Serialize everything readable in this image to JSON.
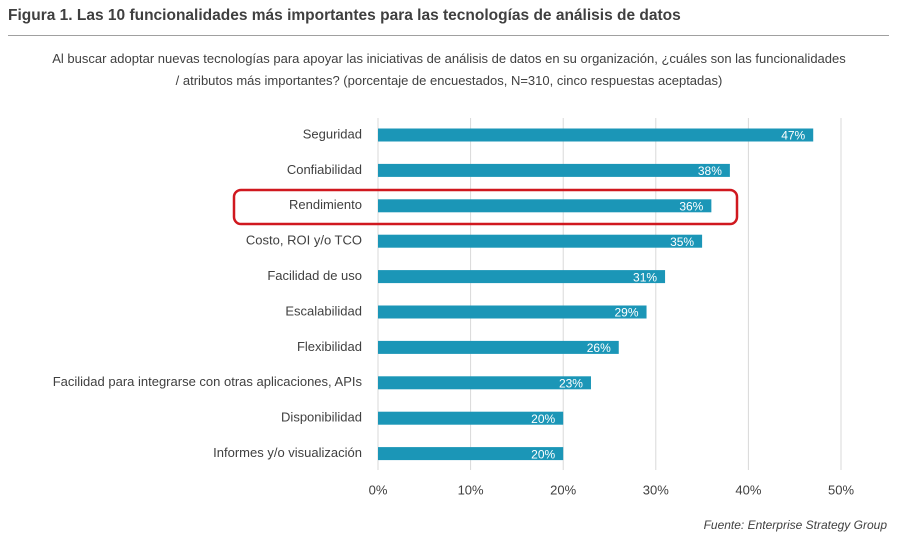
{
  "chart_data": {
    "type": "barh",
    "title": "Figura 1. Las 10 funcionalidades más importantes para las tecnologías de análisis de datos",
    "subtitle": "Al buscar adoptar nuevas tecnologías para apoyar las iniciativas de análisis de datos en su organización, ¿cuáles son las funcionalidades / atributos más importantes? (porcentaje de encuestados, N=310, cinco respuestas aceptadas)",
    "source": "Fuente: Enterprise Strategy Group",
    "categories": [
      "Seguridad",
      "Confiabilidad",
      "Rendimiento",
      "Costo, ROI y/o TCO",
      "Facilidad de uso",
      "Escalabilidad",
      "Flexibilidad",
      "Facilidad para integrarse con otras aplicaciones, APIs",
      "Disponibilidad",
      "Informes y/o visualización"
    ],
    "values": [
      47,
      38,
      36,
      35,
      31,
      29,
      26,
      23,
      20,
      20
    ],
    "value_labels": [
      "47%",
      "38%",
      "36%",
      "35%",
      "31%",
      "29%",
      "26%",
      "23%",
      "20%",
      "20%"
    ],
    "color": "#1b96b7",
    "xlim": [
      0,
      50
    ],
    "xticks": [
      {
        "value": 0,
        "label": "0%"
      },
      {
        "value": 10,
        "label": "10%"
      },
      {
        "value": 20,
        "label": "20%"
      },
      {
        "value": 30,
        "label": "30%"
      },
      {
        "value": 40,
        "label": "40%"
      },
      {
        "value": 50,
        "label": "50%"
      }
    ],
    "grid": true
  }
}
